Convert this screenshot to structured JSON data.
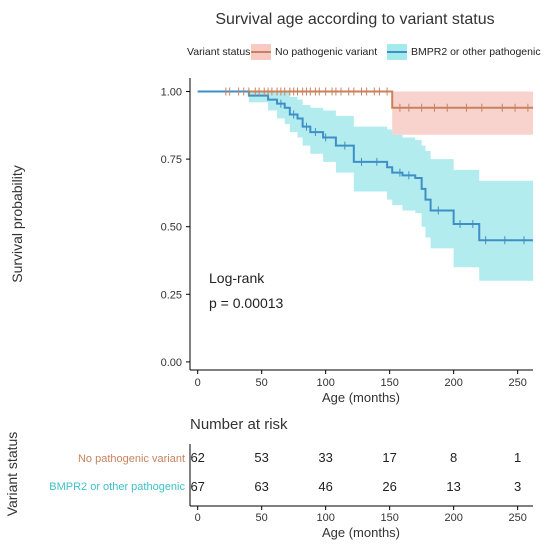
{
  "chart_data": {
    "type": "line",
    "title": "Survival age according to variant status",
    "legend": {
      "title": "Variant status",
      "placement": "top",
      "entries": [
        "No pathogenic variant",
        "BMPR2 or other pathogenic"
      ]
    },
    "xlabel": "Age (months)",
    "ylabel": "Survival probability",
    "xlim": [
      -6,
      262
    ],
    "ylim": [
      -0.03,
      1.05
    ],
    "x_ticks": [
      0,
      50,
      100,
      150,
      200,
      250
    ],
    "y_ticks": [
      "0.00",
      "0.25",
      "0.50",
      "0.75",
      "1.00"
    ],
    "annotation": [
      "Log-rank",
      "p = 0.00013"
    ],
    "colors": {
      "no_pathogenic": "#c8835e",
      "no_pathogenic_band": "#f4b4aa",
      "bmpr2": "#3f8fc6",
      "bmpr2_band": "#7ee0e4"
    },
    "series": [
      {
        "name": "No pathogenic variant",
        "step_x": [
          0,
          152,
          262
        ],
        "step_y": [
          1.0,
          0.94,
          0.94
        ],
        "ci_lower": [
          1.0,
          0.84,
          0.84
        ],
        "ci_upper": [
          1.0,
          1.0,
          1.0
        ],
        "censor_x": [
          22,
          25,
          32,
          36,
          40,
          45,
          48,
          52,
          55,
          58,
          62,
          65,
          68,
          72,
          75,
          78,
          82,
          85,
          88,
          92,
          95,
          100,
          105,
          108,
          112,
          118,
          122,
          128,
          132,
          138,
          142,
          148,
          158,
          165,
          175,
          185,
          195,
          210,
          222,
          238,
          248,
          258
        ]
      },
      {
        "name": "BMPR2 or other pathogenic",
        "step_x": [
          0,
          40,
          55,
          62,
          68,
          72,
          78,
          82,
          88,
          98,
          108,
          122,
          135,
          148,
          152,
          160,
          170,
          175,
          178,
          182,
          192,
          200,
          210,
          220,
          262
        ],
        "step_y": [
          1.0,
          0.985,
          0.97,
          0.955,
          0.94,
          0.915,
          0.9,
          0.87,
          0.85,
          0.83,
          0.8,
          0.74,
          0.74,
          0.72,
          0.7,
          0.69,
          0.68,
          0.64,
          0.6,
          0.56,
          0.56,
          0.51,
          0.51,
          0.45,
          0.45
        ],
        "ci_lower": [
          1.0,
          0.96,
          0.93,
          0.9,
          0.88,
          0.85,
          0.83,
          0.8,
          0.77,
          0.74,
          0.7,
          0.63,
          0.63,
          0.6,
          0.58,
          0.56,
          0.55,
          0.5,
          0.46,
          0.42,
          0.42,
          0.35,
          0.35,
          0.3,
          0.3
        ],
        "ci_upper": [
          1.0,
          1.0,
          1.0,
          1.0,
          1.0,
          0.98,
          0.97,
          0.95,
          0.94,
          0.93,
          0.91,
          0.87,
          0.87,
          0.86,
          0.84,
          0.83,
          0.82,
          0.8,
          0.78,
          0.75,
          0.75,
          0.71,
          0.71,
          0.67,
          0.67
        ],
        "censor_x": [
          65,
          75,
          85,
          92,
          100,
          115,
          128,
          140,
          158,
          165,
          188,
          205,
          215,
          225,
          240,
          255
        ]
      }
    ]
  },
  "risk_table": {
    "title": "Number at risk",
    "ylabel": "Variant status",
    "xlabel": "Age (months)",
    "x_ticks": [
      0,
      50,
      100,
      150,
      200,
      250
    ],
    "rows": [
      {
        "label": "No pathogenic variant",
        "values": [
          62,
          53,
          33,
          17,
          8,
          1
        ]
      },
      {
        "label": "BMPR2 or other pathogenic",
        "values": [
          67,
          63,
          46,
          26,
          13,
          3
        ]
      }
    ]
  }
}
